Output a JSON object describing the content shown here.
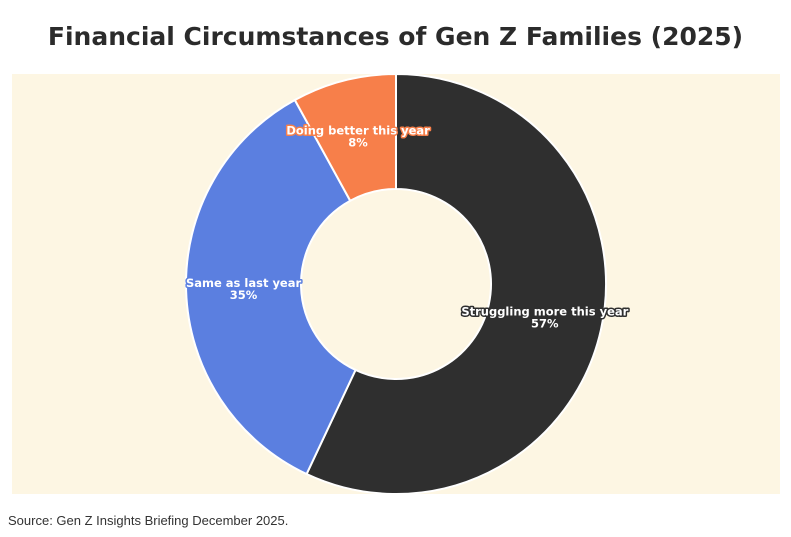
{
  "chart_data": {
    "type": "pie",
    "title": "Financial Circumstances of Gen Z Families (2025)",
    "donut": true,
    "slices": [
      {
        "label": "Struggling more this year",
        "value": 57,
        "display": "57%",
        "color": "#2f2f2f"
      },
      {
        "label": "Same as last year",
        "value": 35,
        "display": "35%",
        "color": "#5b7fe0"
      },
      {
        "label": "Doing better this year",
        "value": 8,
        "display": "8%",
        "color": "#f77f4a"
      }
    ],
    "background": "#fdf6e3"
  },
  "source": "Source: Gen Z Insights Briefing December 2025."
}
